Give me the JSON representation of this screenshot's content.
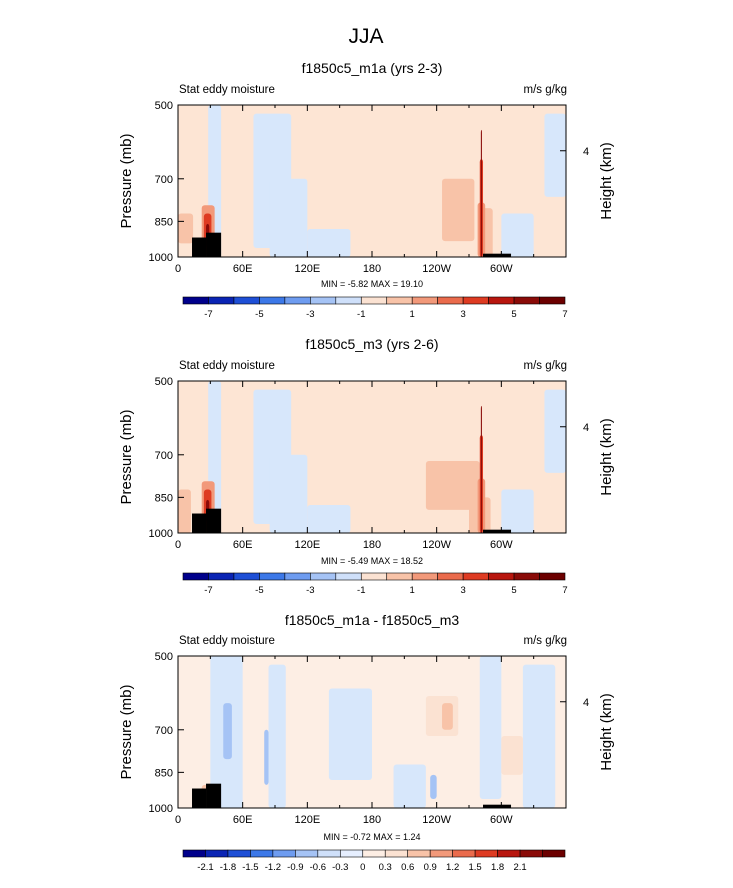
{
  "figure": {
    "title": "JJA"
  },
  "colors": {
    "cbar_main": [
      "#00008b",
      "#0a24b4",
      "#1e4fd6",
      "#3c78e8",
      "#6e9cf0",
      "#a5c3f5",
      "#cfe0fa",
      "#fbe2d2",
      "#f8c3a8",
      "#f2997a",
      "#ea6b4c",
      "#de3b22",
      "#b8160e",
      "#8a0b08",
      "#6c0000"
    ],
    "cbar_diff": [
      "#00008b",
      "#0a24b4",
      "#1e4fd6",
      "#3c78e8",
      "#6e9cf0",
      "#a5c3f5",
      "#cfe0fa",
      "#e6efff",
      "#fdeee4",
      "#fbe2d2",
      "#f8c3a8",
      "#f2997a",
      "#ea6b4c",
      "#de3b22",
      "#b8160e",
      "#8a0b08",
      "#6c0000"
    ],
    "neutral_neg": "#d7e7fb",
    "neutral_pos": "#fde5d4",
    "topography": "#000000"
  },
  "chart_data": [
    {
      "type": "heatmap",
      "title": "f1850c5_m1a (yrs 2-3)",
      "left_label": "Stat eddy moisture",
      "right_label": "m/s g/kg",
      "ylabel": "Pressure (mb)",
      "ylabel_right": "Height (km)",
      "yticks": [
        "500",
        "700",
        "850",
        "1000"
      ],
      "yticks_right": [
        "4"
      ],
      "xticks": [
        "0",
        "60E",
        "120E",
        "180",
        "120W",
        "60W"
      ],
      "xlim": [
        0,
        360
      ],
      "ylim": [
        1000,
        500
      ],
      "stats": "MIN =  -5.82   MAX =  19.10",
      "colorbar": {
        "labels": [
          "-7",
          "-5",
          "-3",
          "-1",
          "1",
          "3",
          "5",
          "7"
        ]
      }
    },
    {
      "type": "heatmap",
      "title": "f1850c5_m3 (yrs 2-6)",
      "left_label": "Stat eddy moisture",
      "right_label": "m/s g/kg",
      "ylabel": "Pressure (mb)",
      "ylabel_right": "Height (km)",
      "yticks": [
        "500",
        "700",
        "850",
        "1000"
      ],
      "yticks_right": [
        "4"
      ],
      "xticks": [
        "0",
        "60E",
        "120E",
        "180",
        "120W",
        "60W"
      ],
      "xlim": [
        0,
        360
      ],
      "ylim": [
        1000,
        500
      ],
      "stats": "MIN =  -5.49   MAX =  18.52",
      "colorbar": {
        "labels": [
          "-7",
          "-5",
          "-3",
          "-1",
          "1",
          "3",
          "5",
          "7"
        ]
      }
    },
    {
      "type": "heatmap",
      "title": "f1850c5_m1a - f1850c5_m3",
      "left_label": "Stat eddy moisture",
      "right_label": "m/s g/kg",
      "ylabel": "Pressure (mb)",
      "ylabel_right": "Height (km)",
      "yticks": [
        "500",
        "700",
        "850",
        "1000"
      ],
      "yticks_right": [
        "4"
      ],
      "xticks": [
        "0",
        "60E",
        "120E",
        "180",
        "120W",
        "60W"
      ],
      "xlim": [
        0,
        360
      ],
      "ylim": [
        1000,
        500
      ],
      "stats": "MIN =  -0.72   MAX =  1.24",
      "colorbar": {
        "labels": [
          "-2.1",
          "-1.8",
          "-1.5",
          "-1.2",
          "-0.9",
          "-0.6",
          "-0.3",
          "0",
          "0.3",
          "0.6",
          "0.9",
          "1.2",
          "1.5",
          "1.8",
          "2.1"
        ]
      }
    }
  ]
}
